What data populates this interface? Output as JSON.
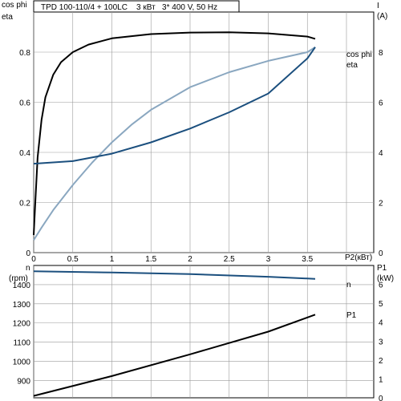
{
  "header": {
    "title": "TPD 100-110/4 + 100LC    3 кВт   3* 400 V, 50 Hz"
  },
  "labels": {
    "top_left_axis_line1": "cos phi",
    "top_left_axis_line2": "eta",
    "top_right_axis": "I",
    "top_right_unit": "(A)",
    "x_axis": "P2(кВт)",
    "bottom_left_axis_line1": "n",
    "bottom_left_axis_line2": "(rpm)",
    "bottom_right_axis": "P1",
    "bottom_right_unit": "(kW)"
  },
  "colors": {
    "black": "#000000",
    "dark_blue": "#1b4f7e",
    "light_blue": "#8aa7c0",
    "grid": "#9a9a9a",
    "plot_bg": "#ffffff"
  },
  "chart_data": [
    {
      "type": "line",
      "panel": "top",
      "xlim": [
        0,
        4.0
      ],
      "x_ticks": [
        0,
        0.5,
        1,
        1.5,
        2,
        2.5,
        3,
        3.5
      ],
      "x_tick_labels": [
        "0",
        "0.5",
        "1",
        "1.5",
        "2",
        "2.5",
        "3",
        "3.5"
      ],
      "ylim": [
        0,
        0.96
      ],
      "y_ticks": [
        0,
        0.2,
        0.4,
        0.6,
        0.8
      ],
      "y_tick_labels": [
        "0",
        "0.2",
        "0.4",
        "0.6",
        "0.8"
      ],
      "y2lim": [
        0,
        9.6
      ],
      "y2_ticks": [
        0,
        2,
        4,
        6,
        8
      ],
      "y2_tick_labels": [
        "0",
        "2",
        "4",
        "6",
        "8"
      ],
      "grid": true,
      "series": [
        {
          "key": "eta",
          "axis": "left",
          "color_key": "black",
          "x": [
            0,
            0.02,
            0.05,
            0.1,
            0.15,
            0.25,
            0.35,
            0.5,
            0.7,
            1.0,
            1.5,
            2.0,
            2.5,
            3.0,
            3.5,
            3.6
          ],
          "y": [
            0.07,
            0.2,
            0.38,
            0.53,
            0.62,
            0.71,
            0.76,
            0.8,
            0.83,
            0.855,
            0.872,
            0.878,
            0.879,
            0.875,
            0.862,
            0.853
          ]
        },
        {
          "key": "cos_phi",
          "name": "cos phi",
          "axis": "left",
          "color_key": "light_blue",
          "x": [
            0,
            0.1,
            0.25,
            0.5,
            0.75,
            1.0,
            1.25,
            1.5,
            2.0,
            2.5,
            3.0,
            3.5,
            3.6
          ],
          "y": [
            0.05,
            0.1,
            0.17,
            0.27,
            0.36,
            0.44,
            0.51,
            0.57,
            0.66,
            0.72,
            0.765,
            0.8,
            0.82
          ]
        },
        {
          "key": "current",
          "name": "I",
          "axis": "right",
          "color_key": "dark_blue",
          "x": [
            0,
            0.5,
            1.0,
            1.5,
            2.0,
            2.5,
            3.0,
            3.5,
            3.6
          ],
          "y": [
            3.55,
            3.65,
            3.95,
            4.4,
            4.95,
            5.6,
            6.35,
            7.75,
            8.2
          ]
        }
      ],
      "line_labels": {
        "cos_phi": "cos phi",
        "eta": "eta"
      }
    },
    {
      "type": "line",
      "panel": "bottom",
      "xlim": [
        0,
        4.0
      ],
      "ylim": [
        810,
        1500
      ],
      "y_ticks": [
        900,
        1000,
        1100,
        1200,
        1300,
        1400
      ],
      "y_tick_labels": [
        "900",
        "1000",
        "1100",
        "1200",
        "1300",
        "1400"
      ],
      "y2lim": [
        0,
        7
      ],
      "y2_ticks": [
        0,
        1,
        2,
        3,
        4,
        5,
        6
      ],
      "y2_tick_labels": [
        "0",
        "1",
        "2",
        "3",
        "4",
        "5",
        "6"
      ],
      "grid": true,
      "series": [
        {
          "key": "n",
          "name": "n",
          "axis": "left",
          "color_key": "dark_blue",
          "x": [
            0,
            1.0,
            2.0,
            3.0,
            3.6
          ],
          "y": [
            1470,
            1463,
            1455,
            1441,
            1430
          ]
        },
        {
          "key": "p1",
          "name": "P1",
          "axis": "right",
          "color_key": "black",
          "x": [
            0,
            1.0,
            2.0,
            3.0,
            3.6
          ],
          "y": [
            0.1,
            1.15,
            2.3,
            3.5,
            4.4
          ]
        }
      ],
      "line_labels": {
        "n": "n",
        "p1": "P1"
      }
    }
  ]
}
